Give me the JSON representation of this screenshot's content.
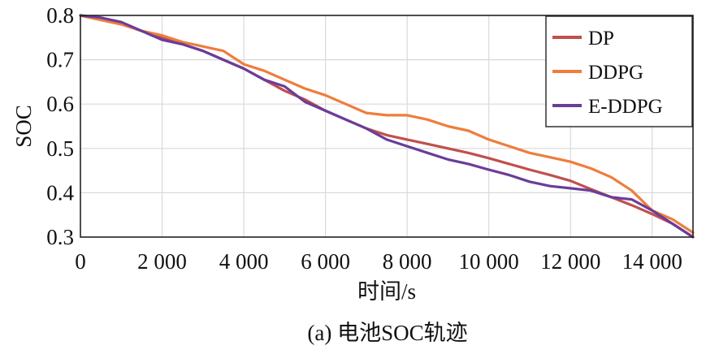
{
  "chart_data": {
    "type": "line",
    "title": "",
    "caption": "(a) 电池SOC轨迹",
    "xlabel": "时间/s",
    "ylabel": "SOC",
    "xlim": [
      0,
      15000
    ],
    "ylim": [
      0.3,
      0.8
    ],
    "x_ticks": [
      0,
      2000,
      4000,
      6000,
      8000,
      10000,
      12000,
      14000
    ],
    "x_tick_labels": [
      "0",
      "2 000",
      "4 000",
      "6 000",
      "8 000",
      "10 000",
      "12 000",
      "14 000"
    ],
    "y_ticks": [
      0.3,
      0.4,
      0.5,
      0.6,
      0.7,
      0.8
    ],
    "y_tick_labels": [
      "0.3",
      "0.4",
      "0.5",
      "0.6",
      "0.7",
      "0.8"
    ],
    "grid": true,
    "legend_position": "top-right",
    "series": [
      {
        "name": "DP",
        "color": "#c0504d",
        "x": [
          0,
          500,
          1000,
          1500,
          2000,
          2500,
          3000,
          3500,
          4000,
          4500,
          5000,
          5500,
          6000,
          6500,
          7000,
          7500,
          8000,
          8500,
          9000,
          9500,
          10000,
          10500,
          11000,
          11500,
          12000,
          12500,
          13000,
          13500,
          14000,
          14500,
          15000
        ],
        "y": [
          0.8,
          0.79,
          0.78,
          0.765,
          0.75,
          0.735,
          0.72,
          0.7,
          0.68,
          0.655,
          0.63,
          0.61,
          0.585,
          0.565,
          0.545,
          0.53,
          0.52,
          0.51,
          0.5,
          0.49,
          0.478,
          0.465,
          0.452,
          0.44,
          0.427,
          0.408,
          0.39,
          0.372,
          0.352,
          0.33,
          0.3
        ]
      },
      {
        "name": "DDPG",
        "color": "#ee7d3d",
        "x": [
          0,
          500,
          1000,
          1500,
          2000,
          2500,
          3000,
          3500,
          4000,
          4500,
          5000,
          5500,
          6000,
          6500,
          7000,
          7500,
          8000,
          8500,
          9000,
          9500,
          10000,
          10500,
          11000,
          11500,
          12000,
          12500,
          13000,
          13500,
          14000,
          14500,
          15000
        ],
        "y": [
          0.8,
          0.79,
          0.78,
          0.765,
          0.755,
          0.74,
          0.73,
          0.72,
          0.69,
          0.675,
          0.655,
          0.635,
          0.62,
          0.6,
          0.58,
          0.575,
          0.575,
          0.565,
          0.55,
          0.54,
          0.52,
          0.505,
          0.49,
          0.48,
          0.47,
          0.455,
          0.435,
          0.405,
          0.36,
          0.34,
          0.31
        ]
      },
      {
        "name": "E-DDPG",
        "color": "#6a3d9a",
        "x": [
          0,
          500,
          1000,
          1500,
          2000,
          2500,
          3000,
          3500,
          4000,
          4500,
          5000,
          5500,
          6000,
          6500,
          7000,
          7500,
          8000,
          8500,
          9000,
          9500,
          10000,
          10500,
          11000,
          11500,
          12000,
          12500,
          13000,
          13500,
          14000,
          14500,
          15000
        ],
        "y": [
          0.8,
          0.795,
          0.785,
          0.765,
          0.745,
          0.735,
          0.72,
          0.7,
          0.68,
          0.655,
          0.64,
          0.605,
          0.585,
          0.565,
          0.545,
          0.52,
          0.505,
          0.49,
          0.475,
          0.465,
          0.452,
          0.44,
          0.425,
          0.415,
          0.41,
          0.405,
          0.39,
          0.385,
          0.36,
          0.33,
          0.3
        ]
      }
    ]
  }
}
